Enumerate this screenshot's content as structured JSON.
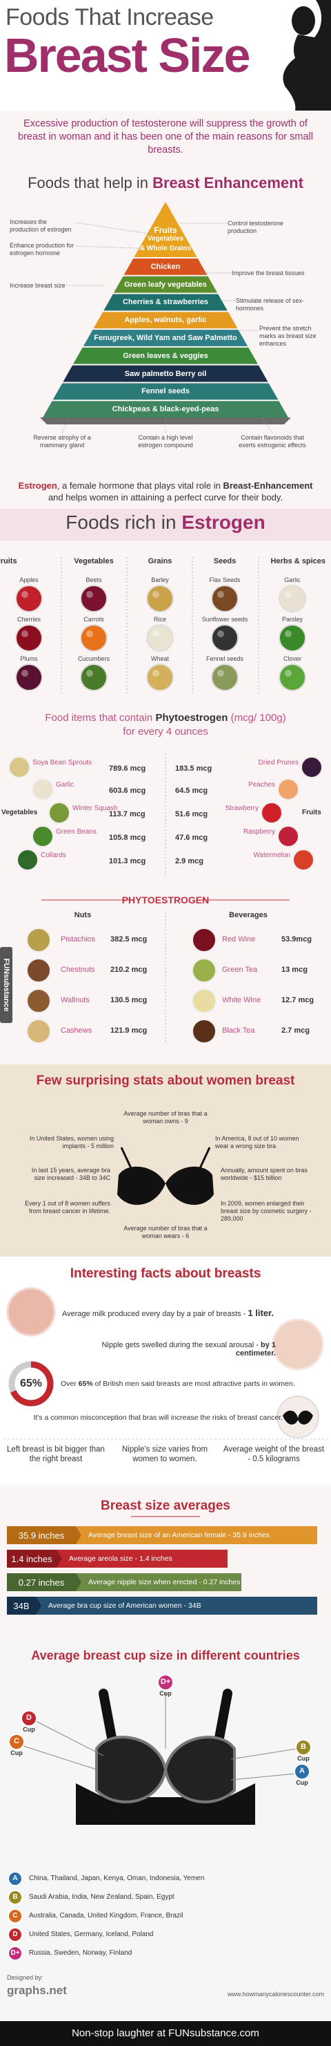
{
  "header": {
    "title_line1": "Foods That Increase",
    "title_line2": "Breast Size",
    "intro": "Excessive production of testosterone will suppress the growth of breast in woman and it has been one of the main reasons for small breasts."
  },
  "enhancement": {
    "title": "Foods that help in ",
    "title_highlight": "Breast Enhancement",
    "pyramid_top": [
      "Fruits",
      "Vegetables",
      "& Whole Grains"
    ],
    "layers": [
      "Chicken",
      "Green leafy vegetables",
      "Cherries & strawberries",
      "Apples, walnuts, garlic",
      "Fenugreek, Wild Yam and Saw Palmetto",
      "Green leaves & veggies",
      "Saw palmetto Berry oil",
      "Fennel seeds",
      "Chickpeas & black-eyed-peas"
    ],
    "notes": [
      "Control testosterone production",
      "Increases the production of estrogen",
      "Improve the breast tissues",
      "Enhance production for estrogen hormone",
      "Stimulate release of sex-hormones",
      "Increase breast size",
      "Prevent the stretch marks as breast size enhances",
      "Reverse atrophy of a mammary gland",
      "Contain a high level estrogen compound",
      "Contain flavonoids that exerts estrogenic effects"
    ]
  },
  "estrogen_note": {
    "term": "Estrogen",
    "text": ", a female hormone that plays vital role in ",
    "highlight": "Breast-Enhancement",
    "text_end": " and helps women in attaining a perfect curve for their body."
  },
  "estrogen_foods": {
    "title": "Foods rich in ",
    "title_highlight": "Estrogen",
    "groups": [
      {
        "name": "Fruits",
        "items": [
          "Apples",
          "Cherries",
          "Plums"
        ]
      },
      {
        "name": "Vegetables",
        "items": [
          "Beets",
          "Carrots",
          "Cucumbers"
        ]
      },
      {
        "name": "Grains",
        "items": [
          "Barley",
          "Rice",
          "Wheat"
        ]
      },
      {
        "name": "Seeds",
        "items": [
          "Flax Seeds",
          "Sunflower seeds",
          "Fennel seeds"
        ]
      },
      {
        "name": "Herbs & spices",
        "items": [
          "Garlic",
          "Parsley",
          "Clover"
        ]
      }
    ]
  },
  "phyto": {
    "title": "Food items that contain ",
    "title_highlight": "Phytoestrogen",
    "unit": " (mcg/ 100g)",
    "subtitle": "for every 4 ounces",
    "vegetables": {
      "name": "Vegetables",
      "items": [
        {
          "name": "Soya Bean Sprouts",
          "value": "789.6 mcg"
        },
        {
          "name": "Garlic",
          "value": "603.6 mcg"
        },
        {
          "name": "Winter Squash",
          "value": "113.7 mcg"
        },
        {
          "name": "Green Beans",
          "value": "105.8 mcg"
        },
        {
          "name": "Collards",
          "value": "101.3 mcg"
        }
      ]
    },
    "fruits": {
      "name": "Fruits",
      "items": [
        {
          "name": "Dried Prunes",
          "value": "183.5 mcg"
        },
        {
          "name": "Peaches",
          "value": "64.5 mcg"
        },
        {
          "name": "Strawberry",
          "value": "51.6 mcg"
        },
        {
          "name": "Raspberry",
          "value": "47.6 mcg"
        },
        {
          "name": "Watermelon",
          "value": "2.9 mcg"
        }
      ]
    },
    "banner": "PHYTOESTROGEN",
    "nuts": {
      "name": "Nuts",
      "items": [
        {
          "name": "Pistachios",
          "value": "382.5 mcg"
        },
        {
          "name": "Chestnuts",
          "value": "210.2 mcg"
        },
        {
          "name": "Wallnuts",
          "value": "130.5 mcg"
        },
        {
          "name": "Cashews",
          "value": "121.9 mcg"
        }
      ]
    },
    "beverages": {
      "name": "Beverages",
      "items": [
        {
          "name": "Red Wine",
          "value": "53.9mcg"
        },
        {
          "name": "Green Tea",
          "value": "13 mcg"
        },
        {
          "name": "White Wine",
          "value": "12.7 mcg"
        },
        {
          "name": "Black Tea",
          "value": "2.7 mcg"
        }
      ]
    }
  },
  "watermark": "FUNsubstance",
  "stats": {
    "title": "Few surprising stats about women breast",
    "items": [
      "Average number of bras that a woman owns - 9",
      "In United States, women using implants - 5 million",
      "In America, 8 out of 10 women wear a wrong size bra",
      "In last 15 years, average bra size increased - 34B to 34C",
      "Annually, amount spent on bras worldwide - $15 billion",
      "Every 1 out of 8 women suffers from breast cancer in lifetime.",
      "In 2009, women enlarged their breast size by cosmetic surgery - 289,000",
      "Average number of bras that a woman wears - 6"
    ]
  },
  "facts": {
    "title": "Interesting facts about breasts",
    "milk": {
      "text": "Average milk produced every day by a pair of breasts - ",
      "highlight": "1 liter."
    },
    "nipple": {
      "text": "Nipple gets swelled during the sexual arousal - ",
      "highlight": "by 1 centimeter."
    },
    "percent": "65%",
    "british": {
      "text": "Over ",
      "highlight": "65%",
      "text_end": " of British men said breasts are most attractive parts in women."
    },
    "misconception": "It's a common misconception that bras will increase the risks of breast cancer.",
    "bottom": [
      "Left breast is bit bigger than the right breast",
      "Nipple's size varies from women to women.",
      "Average weight of the breast - 0.5 kilograms"
    ]
  },
  "averages": {
    "title": "Breast size averages",
    "items": [
      {
        "label": "35.9 inches",
        "text": "Average breast size of an American female - 35.9 inches"
      },
      {
        "label": "1.4 inches",
        "text": "Average areola size - 1.4 inches"
      },
      {
        "label": "0.27 inches",
        "text": "Average nipple size when erected - 0.27 inches"
      },
      {
        "label": "34B",
        "text": "Average bra cup size of American women - 34B"
      }
    ]
  },
  "cups": {
    "title": "Average breast cup size in different countries",
    "badges": [
      {
        "letter": "D+",
        "word": "Cup"
      },
      {
        "letter": "D",
        "word": "Cup"
      },
      {
        "letter": "C",
        "word": "Cup"
      },
      {
        "letter": "B",
        "word": "Cup"
      },
      {
        "letter": "A",
        "word": "Cup"
      }
    ],
    "countries": [
      {
        "letter": "A",
        "text": "China, Thailand, Japan, Kenya, Oman, Indonesia, Yemen"
      },
      {
        "letter": "B",
        "text": "Saudi Arabia, India, New Zealand, Spain, Egypt"
      },
      {
        "letter": "C",
        "text": "Australia, Canada, United Kingdom, France, Brazil"
      },
      {
        "letter": "D",
        "text": "United States, Germany, Iceland, Poland"
      },
      {
        "letter": "D+",
        "text": "Russia, Sweden, Norway, Finland"
      }
    ]
  },
  "footer": {
    "designed_by": "Designed by:",
    "designer": "graphs.net",
    "website": "www.howmanycaloriescounter.com"
  },
  "bottom_bar": "Non-stop laughter at FUNsubstance.com"
}
